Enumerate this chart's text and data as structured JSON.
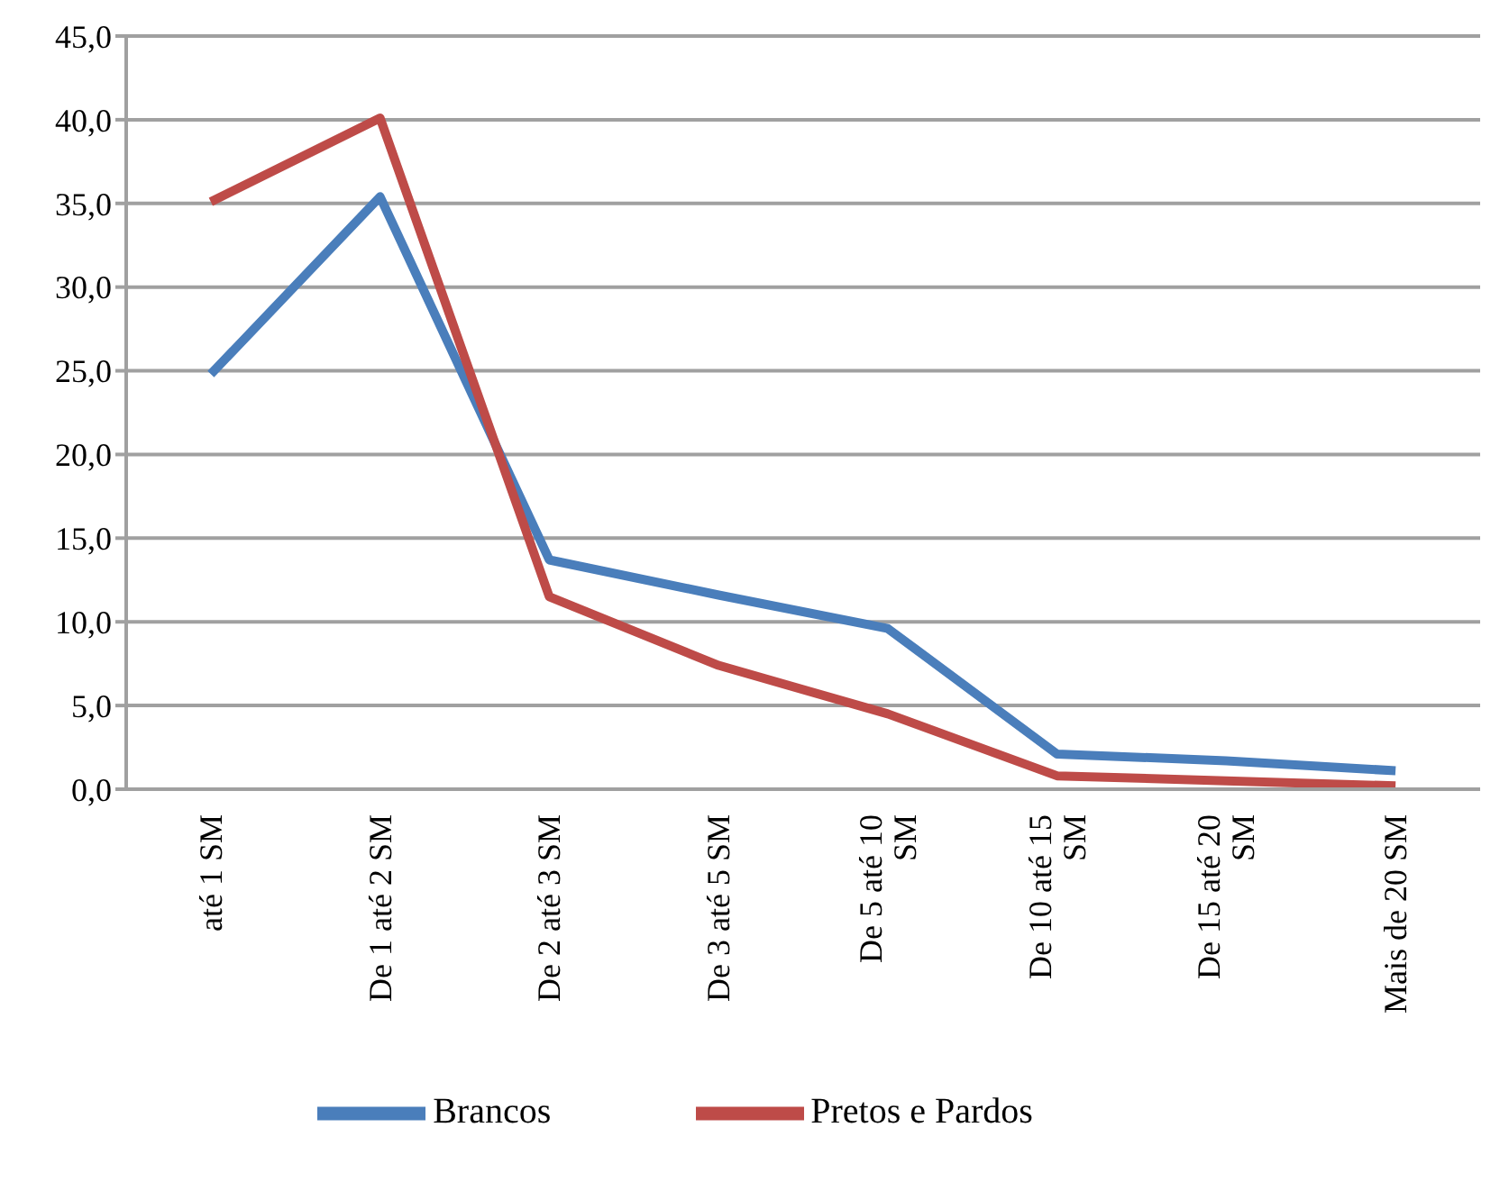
{
  "chart_data": {
    "type": "line",
    "categories": [
      "até 1 SM",
      "De 1 até 2 SM",
      "De 2 até 3 SM",
      "De 3 até 5 SM",
      "De 5 até 10 SM",
      "De 10 até 15 SM",
      "De 15 até 20 SM",
      "Mais de 20 SM"
    ],
    "series": [
      {
        "name": "Brancos",
        "color": "#4a7ebb",
        "values": [
          24.8,
          35.4,
          13.7,
          11.6,
          9.6,
          2.1,
          1.7,
          1.1
        ]
      },
      {
        "name": "Pretos e Pardos",
        "color": "#be4b48",
        "values": [
          35.1,
          40.1,
          11.5,
          7.4,
          4.5,
          0.8,
          0.5,
          0.2
        ]
      }
    ],
    "ylim": [
      0,
      45
    ],
    "yticks": [
      {
        "value": 0,
        "label": "0,0"
      },
      {
        "value": 5,
        "label": "5,0"
      },
      {
        "value": 10,
        "label": "10,0"
      },
      {
        "value": 15,
        "label": "15,0"
      },
      {
        "value": 20,
        "label": "20,0"
      },
      {
        "value": 25,
        "label": "25,0"
      },
      {
        "value": 30,
        "label": "30,0"
      },
      {
        "value": 35,
        "label": "35,0"
      },
      {
        "value": 40,
        "label": "40,0"
      },
      {
        "value": 45,
        "label": "45,0"
      }
    ],
    "grid": "y",
    "legend": "bottom",
    "marker": "none",
    "line_style": "solid"
  }
}
